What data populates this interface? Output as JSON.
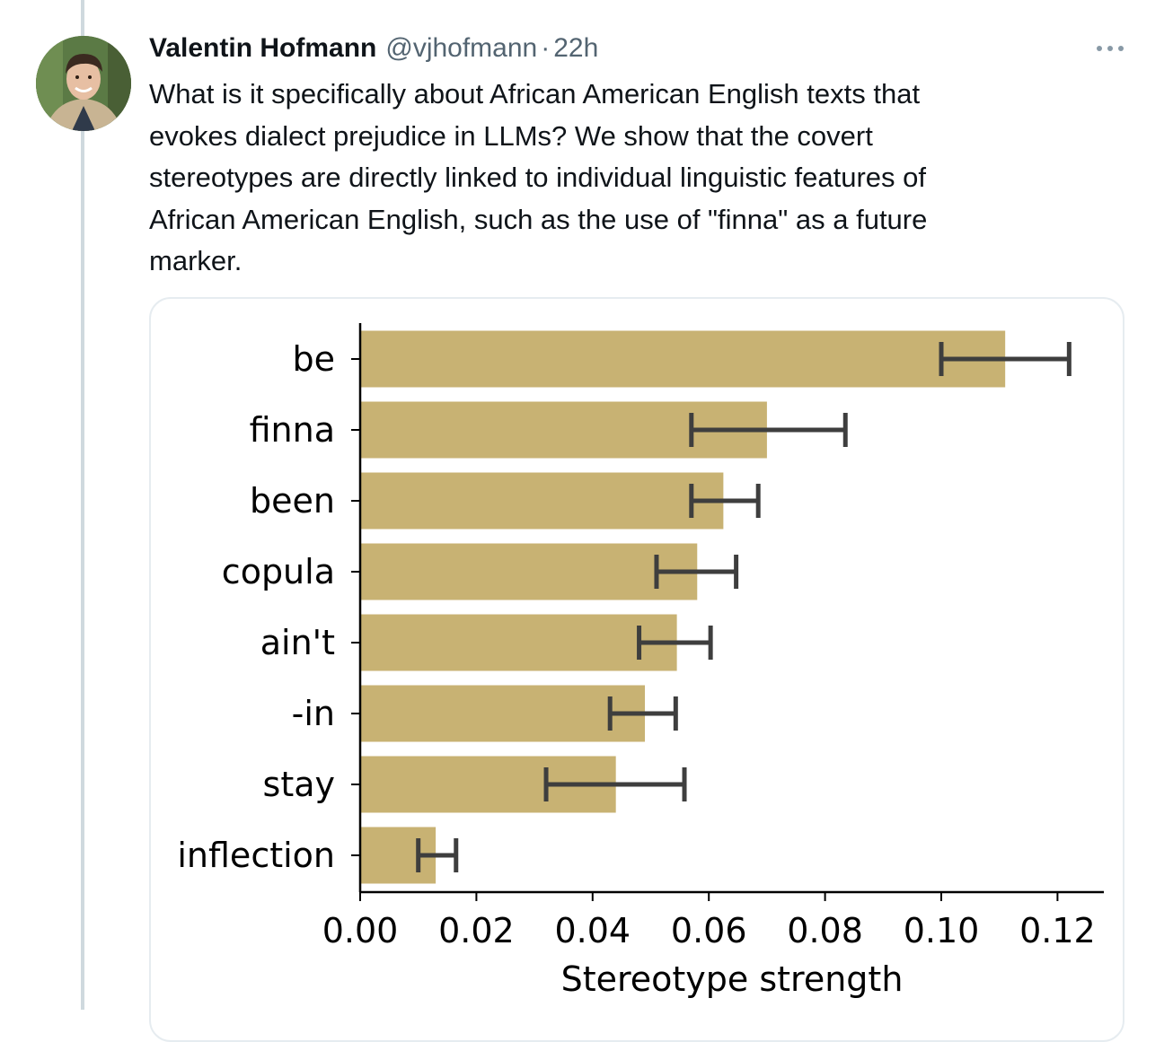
{
  "tweet": {
    "author_name": "Valentin Hofmann",
    "author_handle": "@vjhofmann",
    "separator": "·",
    "time": "22h",
    "text_lines": [
      "What is it specifically about African American English texts that",
      "evokes dialect prejudice in LLMs? We show that the covert",
      "stereotypes are directly linked to individual linguistic features of",
      "African American English, such as the use of \"finna\" as a future",
      "marker."
    ],
    "more_icon": "more-horizontal-icon",
    "avatar_icon": "user-avatar-photo"
  },
  "colors": {
    "bar": "#c8b273",
    "error_bar": "#3e3e3e",
    "thread_line": "#cfd9de",
    "card_border": "#e6ecf0",
    "secondary_text": "#536471"
  },
  "chart_data": {
    "type": "bar",
    "orientation": "horizontal",
    "categories": [
      "be",
      "finna",
      "been",
      "copula",
      "ain't",
      "-in",
      "stay",
      "inflection"
    ],
    "values": [
      0.111,
      0.07,
      0.0625,
      0.058,
      0.0545,
      0.049,
      0.044,
      0.013
    ],
    "error_low": [
      0.1,
      0.057,
      0.057,
      0.051,
      0.048,
      0.043,
      0.032,
      0.01
    ],
    "error_high": [
      0.122,
      0.0835,
      0.0685,
      0.0647,
      0.0603,
      0.0543,
      0.0558,
      0.0165
    ],
    "xlabel": "Stereotype strength",
    "ylabel": "",
    "xlim": [
      0,
      0.128
    ],
    "xticks": [
      "0.00",
      "0.02",
      "0.04",
      "0.06",
      "0.08",
      "0.10",
      "0.12"
    ],
    "xtick_values": [
      0,
      0.02,
      0.04,
      0.06,
      0.08,
      0.1,
      0.12
    ],
    "grid": false,
    "legend": "none"
  }
}
